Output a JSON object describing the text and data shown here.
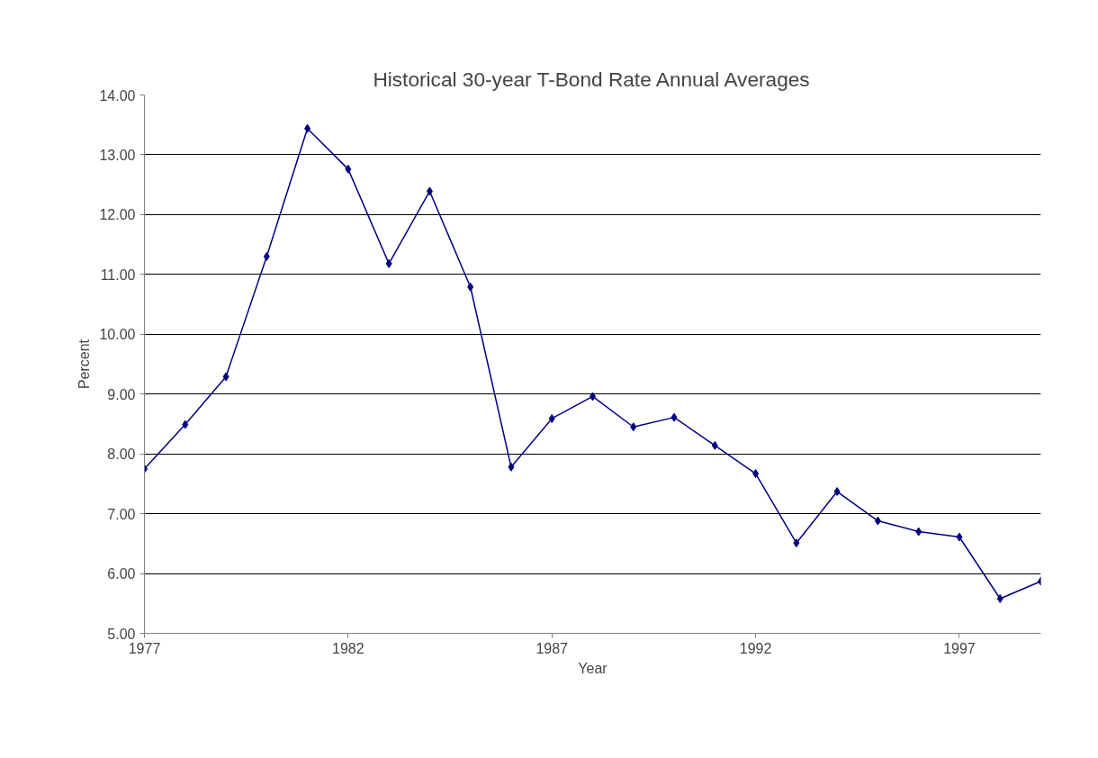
{
  "chart_data": {
    "type": "line",
    "title": "Historical 30-year T-Bond Rate Annual Averages",
    "xlabel": "Year",
    "ylabel": "Percent",
    "x": [
      1977,
      1978,
      1979,
      1980,
      1981,
      1982,
      1983,
      1984,
      1985,
      1986,
      1987,
      1988,
      1989,
      1990,
      1991,
      1992,
      1993,
      1994,
      1995,
      1996,
      1997,
      1998,
      1999
    ],
    "series": [
      {
        "color": "#000080",
        "values": [
          7.75,
          8.49,
          9.29,
          11.3,
          13.44,
          12.76,
          11.18,
          12.39,
          10.79,
          7.78,
          8.59,
          8.96,
          8.45,
          8.61,
          8.14,
          7.67,
          6.51,
          7.37,
          6.88,
          6.7,
          6.61,
          5.58,
          5.87
        ]
      }
    ],
    "xlim": [
      1977,
      1999
    ],
    "xticks": [
      1977,
      1982,
      1987,
      1992,
      1997
    ],
    "ylim": [
      5,
      14
    ],
    "yticks": [
      {
        "value": 5,
        "label": "5.00"
      },
      {
        "value": 6,
        "label": "6.00"
      },
      {
        "value": 7,
        "label": "7.00"
      },
      {
        "value": 8,
        "label": "8.00"
      },
      {
        "value": 9,
        "label": "9.00"
      },
      {
        "value": 10,
        "label": "10.00"
      },
      {
        "value": 11,
        "label": "11.00"
      },
      {
        "value": 12,
        "label": "12.00"
      },
      {
        "value": 13,
        "label": "13.00"
      },
      {
        "value": 14,
        "label": "14.00"
      }
    ],
    "grid": "y",
    "marker": "diamond",
    "line_style": "solid"
  }
}
